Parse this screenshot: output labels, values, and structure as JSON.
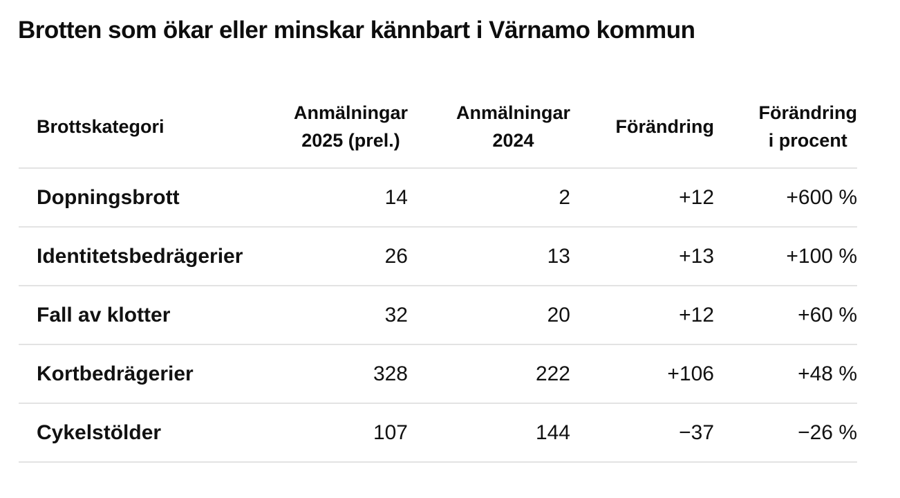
{
  "title": "Brotten som ökar eller minskar kännbart i Värnamo kommun",
  "table": {
    "columns": [
      {
        "label": "Brottskategori",
        "align": "left"
      },
      {
        "label": "Anmälningar\n2025 (prel.)",
        "align": "right"
      },
      {
        "label": "Anmälningar\n2024",
        "align": "right"
      },
      {
        "label": "Förändring",
        "align": "right"
      },
      {
        "label": "Förändring\ni procent",
        "align": "right"
      }
    ],
    "rows": [
      {
        "category": "Dopningsbrott",
        "reports_2025": "14",
        "reports_2024": "2",
        "change": "+12",
        "change_percent": "+600 %"
      },
      {
        "category": "Identitetsbedrägerier",
        "reports_2025": "26",
        "reports_2024": "13",
        "change": "+13",
        "change_percent": "+100 %"
      },
      {
        "category": "Fall av klotter",
        "reports_2025": "32",
        "reports_2024": "20",
        "change": "+12",
        "change_percent": "+60 %"
      },
      {
        "category": "Kortbedrägerier",
        "reports_2025": "328",
        "reports_2024": "222",
        "change": "+106",
        "change_percent": "+48 %"
      },
      {
        "category": "Cykelstölder",
        "reports_2025": "107",
        "reports_2024": "144",
        "change": "−37",
        "change_percent": "−26 %"
      }
    ]
  },
  "colors": {
    "separator": "#e3e3e3",
    "text": "#111111"
  }
}
